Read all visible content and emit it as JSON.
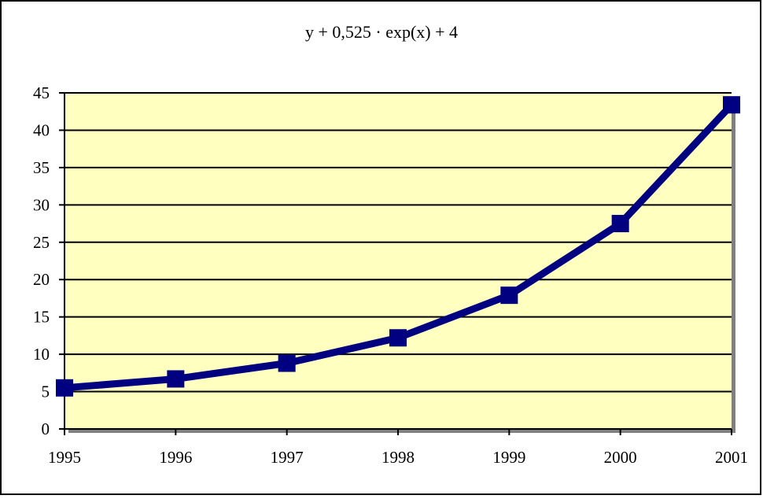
{
  "chart_data": {
    "type": "line",
    "title": "y + 0,525 · exp(x) + 4",
    "xlabel": "",
    "ylabel": "",
    "categories": [
      "1995",
      "1996",
      "1997",
      "1998",
      "1999",
      "2000",
      "2001"
    ],
    "series": [
      {
        "values": [
          5.5,
          6.7,
          8.8,
          12.2,
          17.9,
          27.5,
          43.4
        ]
      }
    ],
    "ylim": [
      0,
      45
    ],
    "yticks": [
      0,
      5,
      10,
      15,
      20,
      25,
      30,
      35,
      40,
      45
    ],
    "grid": true,
    "legend": "none",
    "colors": {
      "plot_background": "#FFFFC0",
      "series": "#000080",
      "grid": "#000000",
      "plot_shadow": "#808080"
    }
  }
}
